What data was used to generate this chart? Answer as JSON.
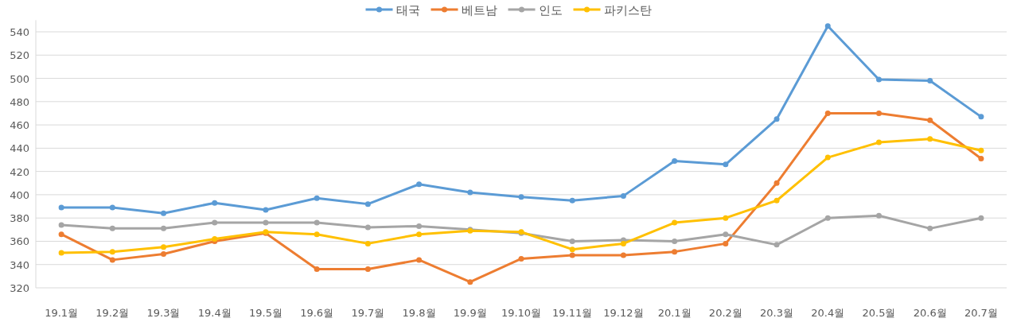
{
  "chart_data": {
    "type": "line",
    "categories": [
      "19.1월",
      "19.2월",
      "19.3월",
      "19.4월",
      "19.5월",
      "19.6월",
      "19.7월",
      "19.8월",
      "19.9월",
      "19.10월",
      "19.11월",
      "19.12월",
      "20.1월",
      "20.2월",
      "20.3월",
      "20.4월",
      "20.5월",
      "20.6월",
      "20.7월"
    ],
    "series": [
      {
        "name": "태국",
        "color": "#5b9bd5",
        "values": [
          389,
          389,
          384,
          393,
          387,
          397,
          392,
          409,
          402,
          398,
          395,
          399,
          429,
          426,
          465,
          545,
          499,
          498,
          467
        ]
      },
      {
        "name": "베트남",
        "color": "#ed7d31",
        "values": [
          366,
          344,
          349,
          360,
          367,
          336,
          336,
          344,
          325,
          345,
          348,
          348,
          351,
          358,
          410,
          470,
          470,
          464,
          431
        ]
      },
      {
        "name": "인도",
        "color": "#a5a5a5",
        "values": [
          374,
          371,
          371,
          376,
          376,
          376,
          372,
          373,
          370,
          367,
          360,
          361,
          360,
          366,
          357,
          380,
          382,
          371,
          380
        ]
      },
      {
        "name": "파키스탄",
        "color": "#ffc000",
        "values": [
          350,
          351,
          355,
          362,
          368,
          366,
          358,
          366,
          369,
          368,
          353,
          358,
          376,
          380,
          395,
          432,
          445,
          448,
          438
        ]
      }
    ],
    "ylim": [
      320,
      550
    ],
    "yticks": [
      320,
      340,
      360,
      380,
      400,
      420,
      440,
      460,
      480,
      500,
      520,
      540
    ],
    "grid": "y",
    "legend": "top",
    "marker": "circle",
    "line_style": "solid"
  }
}
